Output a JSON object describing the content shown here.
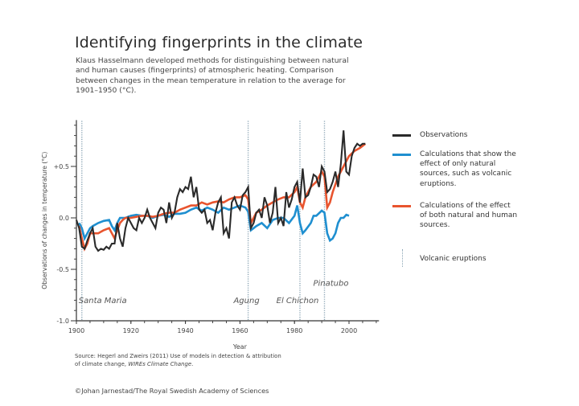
{
  "header": {
    "title": "Identifying fingerprints in the climate",
    "subtitle": "Klaus Hasselmann developed methods for distinguishing between natural and human causes (fingerprints) of atmospheric heating. Comparison between changes in the mean temperature in relation to the average for 1901–1950 (°C)."
  },
  "footer": {
    "source_prefix": "Source: Hegerl and Zweirs (2011) Use of models in detection & attribution of climate change, ",
    "source_journal": "WIREs Climate Change",
    "source_suffix": ".",
    "copyright": "©Johan Jarnestad/The Royal Swedish Academy of Sciences"
  },
  "colors": {
    "observations": "#2a2a2a",
    "natural": "#1f8fd0",
    "natural_human": "#e8542e",
    "volcanic": "#8aa4b4",
    "axis": "#333333"
  },
  "legend": [
    {
      "key": "observations",
      "label": "Observations",
      "style": "line"
    },
    {
      "key": "natural",
      "label": "Calculations that show the effect of only natural sources, such as volcanic eruptions.",
      "style": "line"
    },
    {
      "key": "natural_human",
      "label": "Calculations of the effect of both natural and human sources.",
      "style": "line"
    },
    {
      "key": "volcanic",
      "label": "Volcanic eruptions",
      "style": "dotted"
    }
  ],
  "chart_data": {
    "type": "line",
    "title": "Identifying fingerprints in the climate",
    "xlabel": "Year",
    "ylabel": "Observations of changes in temperature (°C)",
    "xlim": [
      1900,
      2011
    ],
    "ylim": [
      -1.0,
      0.95
    ],
    "x_ticks": [
      1900,
      1920,
      1940,
      1960,
      1980,
      2000
    ],
    "x_tick_labels": [
      "1900",
      "1920",
      "1940",
      "1960",
      "1980",
      "2000"
    ],
    "y_ticks": [
      0.5,
      0.0,
      -0.5,
      -1.0
    ],
    "y_tick_labels": [
      "+0.5",
      "0.0",
      "-0.5",
      "-1.0"
    ],
    "y_minor_step": 0.1,
    "x_minor_step": 5,
    "grid": false,
    "legend_position": "right",
    "volcanoes": [
      {
        "name": "Santa Maria",
        "year": 1902,
        "label_level": "low"
      },
      {
        "name": "Agung",
        "year": 1963,
        "label_level": "low"
      },
      {
        "name": "El Chichon",
        "year": 1982,
        "label_level": "low"
      },
      {
        "name": "Pinatubo",
        "year": 1991,
        "label_level": "high"
      }
    ],
    "series": [
      {
        "name": "Observations",
        "key": "observations",
        "x": [
          1900,
          1901,
          1902,
          1903,
          1904,
          1905,
          1906,
          1907,
          1908,
          1909,
          1910,
          1911,
          1912,
          1913,
          1914,
          1915,
          1916,
          1917,
          1918,
          1919,
          1920,
          1921,
          1922,
          1923,
          1924,
          1925,
          1926,
          1927,
          1928,
          1929,
          1930,
          1931,
          1932,
          1933,
          1934,
          1935,
          1936,
          1937,
          1938,
          1939,
          1940,
          1941,
          1942,
          1943,
          1944,
          1945,
          1946,
          1947,
          1948,
          1949,
          1950,
          1951,
          1952,
          1953,
          1954,
          1955,
          1956,
          1957,
          1958,
          1959,
          1960,
          1961,
          1962,
          1963,
          1964,
          1965,
          1966,
          1967,
          1968,
          1969,
          1970,
          1971,
          1972,
          1973,
          1974,
          1975,
          1976,
          1977,
          1978,
          1979,
          1980,
          1981,
          1982,
          1983,
          1984,
          1985,
          1986,
          1987,
          1988,
          1989,
          1990,
          1991,
          1992,
          1993,
          1994,
          1995,
          1996,
          1997,
          1998,
          1999,
          2000,
          2001,
          2002,
          2003,
          2004,
          2005,
          2006
        ],
        "values": [
          -0.02,
          -0.1,
          -0.28,
          -0.3,
          -0.22,
          -0.15,
          -0.1,
          -0.28,
          -0.32,
          -0.3,
          -0.31,
          -0.28,
          -0.3,
          -0.25,
          -0.25,
          -0.05,
          -0.2,
          -0.28,
          -0.1,
          0.0,
          -0.05,
          -0.1,
          -0.12,
          0.0,
          -0.05,
          0.0,
          0.08,
          0.0,
          -0.05,
          -0.1,
          0.05,
          0.1,
          0.08,
          -0.05,
          0.15,
          0.0,
          0.05,
          0.2,
          0.28,
          0.25,
          0.3,
          0.28,
          0.4,
          0.2,
          0.3,
          0.08,
          0.05,
          0.08,
          -0.05,
          -0.02,
          -0.12,
          0.05,
          0.15,
          0.2,
          -0.15,
          -0.1,
          -0.2,
          0.15,
          0.2,
          0.12,
          0.08,
          0.22,
          0.25,
          0.3,
          -0.1,
          -0.05,
          0.05,
          0.08,
          0.0,
          0.2,
          0.12,
          -0.05,
          0.05,
          0.3,
          -0.05,
          0.0,
          -0.08,
          0.25,
          0.1,
          0.18,
          0.3,
          0.35,
          0.15,
          0.48,
          0.2,
          0.22,
          0.3,
          0.42,
          0.4,
          0.3,
          0.5,
          0.45,
          0.25,
          0.28,
          0.35,
          0.45,
          0.3,
          0.52,
          0.85,
          0.45,
          0.42,
          0.6,
          0.68,
          0.72,
          0.7,
          0.72,
          0.72
        ]
      },
      {
        "name": "Natural sources only",
        "key": "natural",
        "x": [
          1901,
          1902,
          1903,
          1904,
          1905,
          1906,
          1908,
          1910,
          1912,
          1913,
          1914,
          1915,
          1916,
          1918,
          1920,
          1922,
          1924,
          1926,
          1928,
          1930,
          1932,
          1934,
          1936,
          1938,
          1940,
          1942,
          1944,
          1946,
          1948,
          1950,
          1952,
          1954,
          1956,
          1958,
          1960,
          1962,
          1963,
          1964,
          1965,
          1966,
          1968,
          1970,
          1972,
          1974,
          1976,
          1978,
          1980,
          1981,
          1982,
          1983,
          1984,
          1986,
          1987,
          1988,
          1990,
          1991,
          1992,
          1993,
          1994,
          1995,
          1996,
          1997,
          1998,
          1999,
          2000
        ],
        "values": [
          -0.05,
          -0.1,
          -0.2,
          -0.15,
          -0.1,
          -0.08,
          -0.05,
          -0.03,
          -0.02,
          -0.08,
          -0.12,
          -0.05,
          0.0,
          0.0,
          0.02,
          0.03,
          0.02,
          0.02,
          0.0,
          0.02,
          0.03,
          0.01,
          0.04,
          0.04,
          0.05,
          0.08,
          0.1,
          0.07,
          0.1,
          0.08,
          0.05,
          0.1,
          0.08,
          0.1,
          0.12,
          0.1,
          0.06,
          -0.12,
          -0.1,
          -0.08,
          -0.05,
          -0.1,
          -0.02,
          0.0,
          0.0,
          -0.05,
          0.02,
          0.12,
          -0.05,
          -0.15,
          -0.12,
          -0.05,
          0.02,
          0.02,
          0.07,
          0.05,
          -0.15,
          -0.22,
          -0.2,
          -0.15,
          -0.05,
          0.0,
          0.0,
          0.03,
          0.02
        ]
      },
      {
        "name": "Natural and human sources",
        "key": "natural_human",
        "x": [
          1901,
          1902,
          1903,
          1904,
          1905,
          1906,
          1908,
          1910,
          1912,
          1913,
          1914,
          1915,
          1916,
          1917,
          1918,
          1920,
          1922,
          1924,
          1926,
          1928,
          1930,
          1932,
          1934,
          1936,
          1938,
          1940,
          1942,
          1944,
          1946,
          1948,
          1950,
          1952,
          1954,
          1956,
          1958,
          1960,
          1962,
          1963,
          1964,
          1965,
          1966,
          1968,
          1970,
          1972,
          1974,
          1976,
          1978,
          1980,
          1981,
          1982,
          1983,
          1984,
          1986,
          1988,
          1990,
          1991,
          1992,
          1993,
          1994,
          1996,
          1998,
          2000,
          2002,
          2004,
          2006
        ],
        "values": [
          -0.08,
          -0.2,
          -0.3,
          -0.25,
          -0.15,
          -0.15,
          -0.15,
          -0.12,
          -0.1,
          -0.15,
          -0.2,
          -0.12,
          -0.05,
          -0.02,
          0.0,
          0.0,
          0.01,
          0.02,
          0.02,
          0.01,
          0.02,
          0.04,
          0.05,
          0.05,
          0.08,
          0.1,
          0.12,
          0.12,
          0.15,
          0.13,
          0.15,
          0.16,
          0.15,
          0.18,
          0.2,
          0.2,
          0.22,
          0.18,
          -0.05,
          0.0,
          0.05,
          0.08,
          0.12,
          0.15,
          0.18,
          0.2,
          0.2,
          0.25,
          0.3,
          0.15,
          0.1,
          0.2,
          0.3,
          0.35,
          0.45,
          0.4,
          0.1,
          0.15,
          0.25,
          0.4,
          0.5,
          0.6,
          0.65,
          0.68,
          0.72
        ]
      }
    ]
  },
  "labels": {
    "x_axis": "Year",
    "y_axis": "Observations of changes in temperature (°C)"
  }
}
